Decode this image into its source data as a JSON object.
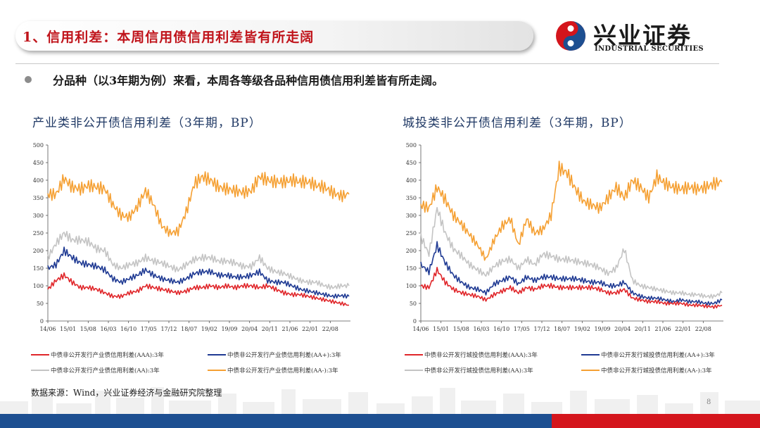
{
  "header": {
    "title": "1、信用利差：本周信用债信用利差皆有所走阔",
    "logo_name": "兴业证券",
    "logo_sub": "INDUSTRIAL SECURITIES"
  },
  "subtitle": "分品种（以3年期为例）来看，本周各等级各品种信用债信用利差皆有所走阔。",
  "source": "数据来源：Wind，兴业证券经济与金融研究院整理",
  "page_number": "8",
  "colors": {
    "aaa": "#e0262a",
    "aaplus": "#1f3a93",
    "aa": "#c4c4c4",
    "aaminus": "#f5a033",
    "brand_blue": "#1d4f91",
    "brand_red": "#d4151c"
  },
  "chart_data": [
    {
      "type": "line",
      "title": "产业类非公开债信用利差（3年期，BP）",
      "x_ticks": [
        "14/06",
        "15/01",
        "15/08",
        "16/03",
        "16/10",
        "17/05",
        "17/12",
        "18/07",
        "19/02",
        "19/09",
        "20/04",
        "20/11",
        "21/06",
        "22/01",
        "22/08"
      ],
      "y_ticks": [
        "0",
        "50",
        "100",
        "150",
        "200",
        "250",
        "300",
        "350",
        "400",
        "450",
        "500"
      ],
      "ylim": [
        0,
        500
      ],
      "series": [
        {
          "name": "中债非公开发行产业债信用利差(AAA):3年",
          "color": "#e0262a",
          "values": [
            90,
            115,
            130,
            110,
            95,
            95,
            90,
            80,
            70,
            70,
            80,
            85,
            100,
            95,
            90,
            85,
            80,
            85,
            95,
            95,
            100,
            95,
            100,
            95,
            100,
            100,
            95,
            100,
            90,
            80,
            75,
            75,
            70,
            65,
            60,
            55,
            50,
            45
          ]
        },
        {
          "name": "中债非公开发行产业债信用利差(AA+):3年",
          "color": "#1f3a93",
          "values": [
            150,
            160,
            200,
            180,
            165,
            160,
            155,
            145,
            120,
            110,
            120,
            130,
            145,
            130,
            120,
            115,
            110,
            120,
            135,
            140,
            140,
            130,
            130,
            125,
            125,
            130,
            140,
            115,
            110,
            110,
            100,
            90,
            85,
            80,
            75,
            70,
            72,
            70
          ]
        },
        {
          "name": "中债非公开发行产业债信用利差(AA):3年",
          "color": "#c4c4c4",
          "values": [
            180,
            220,
            250,
            230,
            230,
            225,
            205,
            200,
            160,
            150,
            160,
            165,
            180,
            170,
            165,
            155,
            145,
            160,
            175,
            180,
            180,
            170,
            170,
            165,
            155,
            155,
            180,
            150,
            140,
            135,
            125,
            115,
            110,
            110,
            100,
            95,
            100,
            100
          ]
        },
        {
          "name": "中债非公开发行产业债信用利差(AA-):3年",
          "color": "#f5a033",
          "values": [
            360,
            360,
            405,
            380,
            375,
            385,
            380,
            375,
            330,
            300,
            295,
            325,
            370,
            330,
            270,
            250,
            255,
            310,
            390,
            410,
            400,
            380,
            375,
            370,
            365,
            370,
            410,
            400,
            395,
            395,
            400,
            395,
            395,
            385,
            380,
            365,
            355,
            360
          ]
        }
      ]
    },
    {
      "type": "line",
      "title": "城投类非公开债信用利差（3年期，BP）",
      "x_ticks": [
        "14/06",
        "15/01",
        "15/08",
        "16/03",
        "16/10",
        "17/05",
        "17/12",
        "18/07",
        "19/02",
        "19/09",
        "20/04",
        "20/11",
        "21/06",
        "22/01",
        "22/08"
      ],
      "y_ticks": [
        "0",
        "50",
        "100",
        "150",
        "200",
        "250",
        "300",
        "350",
        "400",
        "450",
        "500"
      ],
      "ylim": [
        0,
        500
      ],
      "series": [
        {
          "name": "中债非公开发行城投债信用利差(AAA):3年",
          "color": "#e0262a",
          "values": [
            100,
            95,
            145,
            110,
            90,
            80,
            75,
            70,
            60,
            75,
            85,
            95,
            80,
            95,
            90,
            100,
            100,
            95,
            95,
            95,
            95,
            95,
            90,
            80,
            80,
            90,
            65,
            60,
            55,
            55,
            50,
            50,
            50,
            45,
            45,
            42,
            40,
            45
          ]
        },
        {
          "name": "中债非公开发行城投债信用利差(AA+):3年",
          "color": "#1f3a93",
          "values": [
            160,
            140,
            215,
            165,
            130,
            110,
            95,
            90,
            80,
            105,
            115,
            125,
            105,
            125,
            115,
            125,
            125,
            120,
            120,
            120,
            115,
            110,
            110,
            100,
            100,
            110,
            80,
            70,
            65,
            65,
            60,
            55,
            60,
            55,
            55,
            50,
            50,
            60
          ]
        },
        {
          "name": "中债非公开发行城投债信用利差(AA):3年",
          "color": "#c4c4c4",
          "values": [
            240,
            190,
            320,
            250,
            205,
            185,
            160,
            145,
            130,
            155,
            170,
            175,
            150,
            175,
            160,
            190,
            185,
            175,
            175,
            170,
            165,
            160,
            150,
            135,
            150,
            205,
            115,
            100,
            95,
            90,
            85,
            80,
            80,
            75,
            75,
            70,
            70,
            80
          ]
        },
        {
          "name": "中债非公开发行城投债信用利差(AA-):3年",
          "color": "#f5a033",
          "values": [
            330,
            320,
            380,
            345,
            300,
            275,
            245,
            215,
            175,
            230,
            270,
            290,
            215,
            290,
            250,
            260,
            300,
            435,
            420,
            375,
            340,
            330,
            320,
            350,
            380,
            350,
            400,
            380,
            350,
            410,
            390,
            380,
            375,
            380,
            375,
            380,
            390,
            395
          ]
        }
      ]
    }
  ]
}
